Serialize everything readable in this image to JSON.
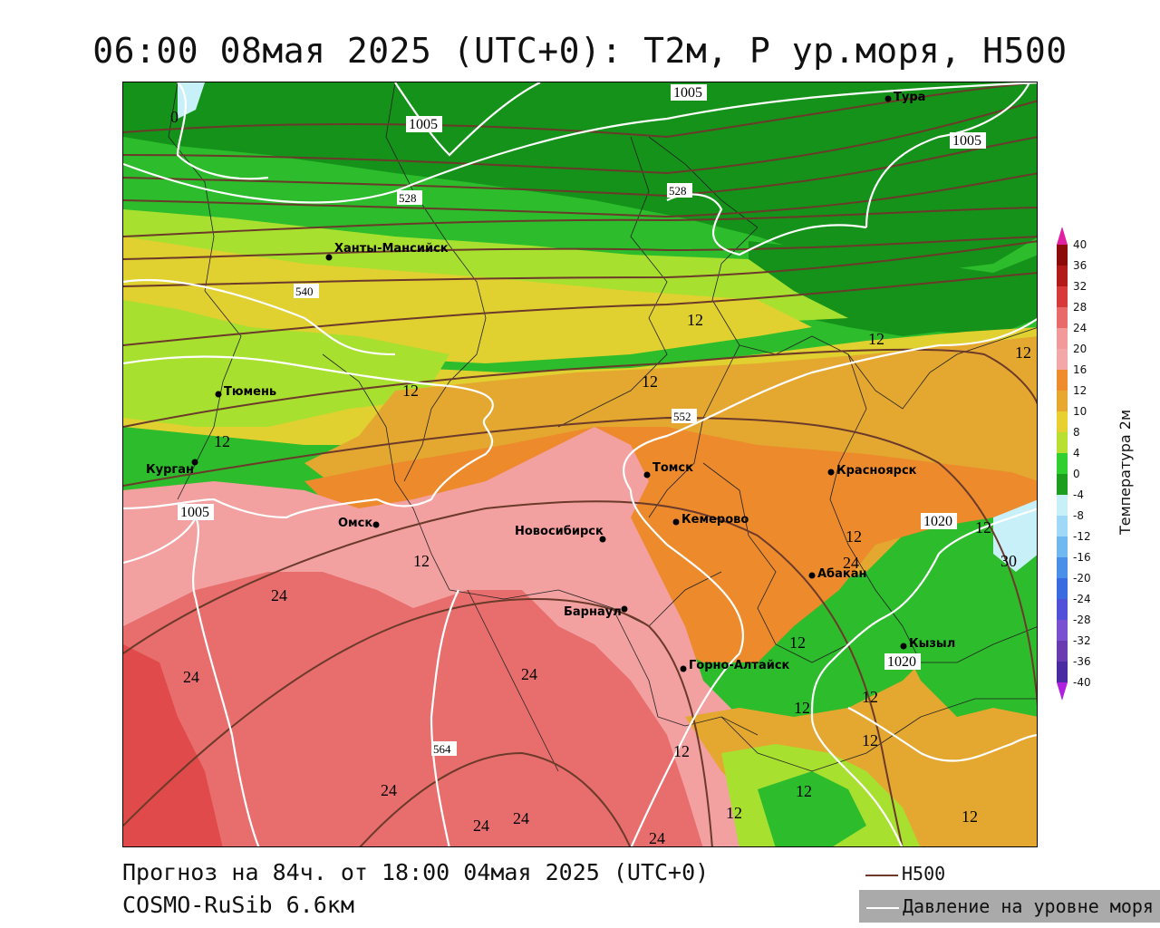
{
  "title": "06:00 08мая 2025 (UTC+0): Т2м, Р ур.моря, H500",
  "footer": {
    "forecast": "Прогноз на 84ч. от 18:00 04мая 2025 (UTC+0)",
    "model": "COSMO-RuSib 6.6км"
  },
  "legend": {
    "h500_label": "H500",
    "h500_color": "#6b3a2a",
    "pressure_label": "Давление на уровне моря",
    "pressure_color": "#ffffff"
  },
  "colorbar": {
    "title": "Температура 2м",
    "ticks": [
      "40",
      "36",
      "32",
      "28",
      "24",
      "20",
      "16",
      "12",
      "10",
      "8",
      "4",
      "0",
      "-4",
      "-8",
      "-12",
      "-16",
      "-20",
      "-24",
      "-28",
      "-32",
      "-36",
      "-40"
    ],
    "colors": [
      "#8c0a0a",
      "#b31a1a",
      "#d63a3a",
      "#e86a6a",
      "#f29a9a",
      "#f2a8a8",
      "#ee8c2e",
      "#e8a830",
      "#e8d030",
      "#b8e030",
      "#30d030",
      "#1e9e1e",
      "#c8f0f8",
      "#a0d8f8",
      "#70b8f0",
      "#4a90e8",
      "#3a6ae0",
      "#5050d8",
      "#7a50d0",
      "#6a3ab0",
      "#4a2aa0",
      "#2a1a8a"
    ],
    "top_arrow_color": "#e020a0",
    "bottom_arrow_color": "#b020e0"
  },
  "cities": [
    {
      "name": "Тура"
    },
    {
      "name": "Ханты-Мансийск"
    },
    {
      "name": "Тюмень"
    },
    {
      "name": "Курган"
    },
    {
      "name": "Омск"
    },
    {
      "name": "Томск"
    },
    {
      "name": "Новосибирск"
    },
    {
      "name": "Кемерово"
    },
    {
      "name": "Красноярск"
    },
    {
      "name": "Абакан"
    },
    {
      "name": "Барнаул"
    },
    {
      "name": "Горно-Алтайск"
    },
    {
      "name": "Кызыл"
    }
  ],
  "h500_labels": [
    "528",
    "528",
    "540",
    "552",
    "564"
  ],
  "pressure_labels": [
    "1005",
    "1005",
    "1005",
    "1005",
    "1020",
    "1020"
  ],
  "temp_labels": [
    "0",
    "12",
    "12",
    "12",
    "12",
    "12",
    "12",
    "12",
    "12",
    "12",
    "12",
    "12",
    "12",
    "12",
    "12",
    "12",
    "12",
    "12",
    "24",
    "24",
    "24",
    "24",
    "24",
    "24",
    "24",
    "24",
    "30"
  ]
}
